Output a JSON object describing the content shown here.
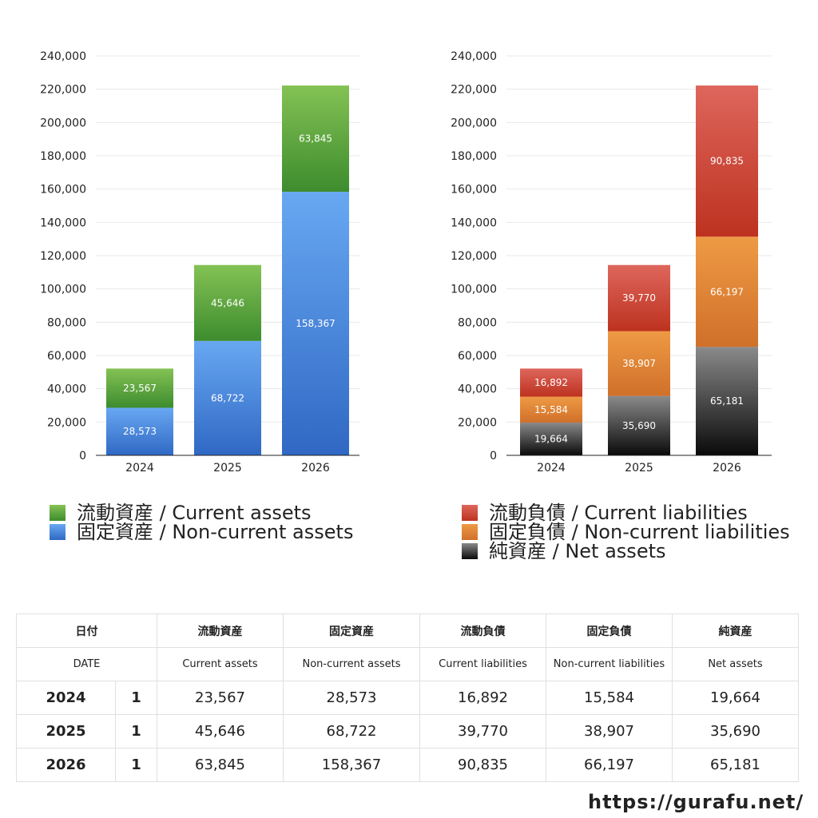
{
  "colors": {
    "current_assets": [
      "#84c254",
      "#3d8c2e"
    ],
    "non_current_assets": [
      "#68a8f2",
      "#3068c4"
    ],
    "current_liabilities": [
      "#de665c",
      "#bd321f"
    ],
    "non_current_liabilities": [
      "#ee9a44",
      "#d0702a"
    ],
    "net_assets": [
      "#8a8a8a",
      "#0a0a0a"
    ]
  },
  "chart_data": [
    {
      "type": "bar",
      "stacked": true,
      "categories": [
        "2024",
        "2025",
        "2026"
      ],
      "ylim": [
        0,
        240000
      ],
      "yticks": [
        "0",
        "20,000",
        "40,000",
        "60,000",
        "80,000",
        "100,000",
        "120,000",
        "140,000",
        "160,000",
        "180,000",
        "200,000",
        "220,000",
        "240,000"
      ],
      "series": [
        {
          "name": "固定資産 / Non-current assets",
          "key": "non_current_assets",
          "values": [
            28573,
            68722,
            158367
          ],
          "labels": [
            "28,573",
            "68,722",
            "158,367"
          ]
        },
        {
          "name": "流動資産 / Current assets",
          "key": "current_assets",
          "values": [
            23567,
            45646,
            63845
          ],
          "labels": [
            "23,567",
            "45,646",
            "63,845"
          ]
        }
      ],
      "legend": [
        "流動資産 / Current assets",
        "固定資産 / Non-current assets"
      ]
    },
    {
      "type": "bar",
      "stacked": true,
      "categories": [
        "2024",
        "2025",
        "2026"
      ],
      "ylim": [
        0,
        240000
      ],
      "yticks": [
        "0",
        "20,000",
        "40,000",
        "60,000",
        "80,000",
        "100,000",
        "120,000",
        "140,000",
        "160,000",
        "180,000",
        "200,000",
        "220,000",
        "240,000"
      ],
      "series": [
        {
          "name": "純資産 / Net assets",
          "key": "net_assets",
          "values": [
            19664,
            35690,
            65181
          ],
          "labels": [
            "19,664",
            "35,690",
            "65,181"
          ]
        },
        {
          "name": "固定負債 / Non-current liabilities",
          "key": "non_current_liabilities",
          "values": [
            15584,
            38907,
            66197
          ],
          "labels": [
            "15,584",
            "38,907",
            "66,197"
          ]
        },
        {
          "name": "流動負債 / Current liabilities",
          "key": "current_liabilities",
          "values": [
            16892,
            39770,
            90835
          ],
          "labels": [
            "16,892",
            "39,770",
            "90,835"
          ]
        }
      ],
      "legend": [
        "流動負債 / Current liabilities",
        "固定負債 / Non-current liabilities",
        "純資産 / Net assets"
      ]
    }
  ],
  "table": {
    "header_ja": [
      "日付",
      "流動資産",
      "固定資産",
      "流動負債",
      "固定負債",
      "純資産"
    ],
    "header_en": [
      "DATE",
      "Current assets",
      "Non-current assets",
      "Current liabilities",
      "Non-current liabilities",
      "Net assets"
    ],
    "rows": [
      {
        "year": "2024",
        "month": "1",
        "values": [
          "23,567",
          "28,573",
          "16,892",
          "15,584",
          "19,664"
        ]
      },
      {
        "year": "2025",
        "month": "1",
        "values": [
          "45,646",
          "68,722",
          "39,770",
          "38,907",
          "35,690"
        ]
      },
      {
        "year": "2026",
        "month": "1",
        "values": [
          "63,845",
          "158,367",
          "90,835",
          "66,197",
          "65,181"
        ]
      }
    ]
  },
  "footer": {
    "url": "https://gurafu.net/"
  }
}
